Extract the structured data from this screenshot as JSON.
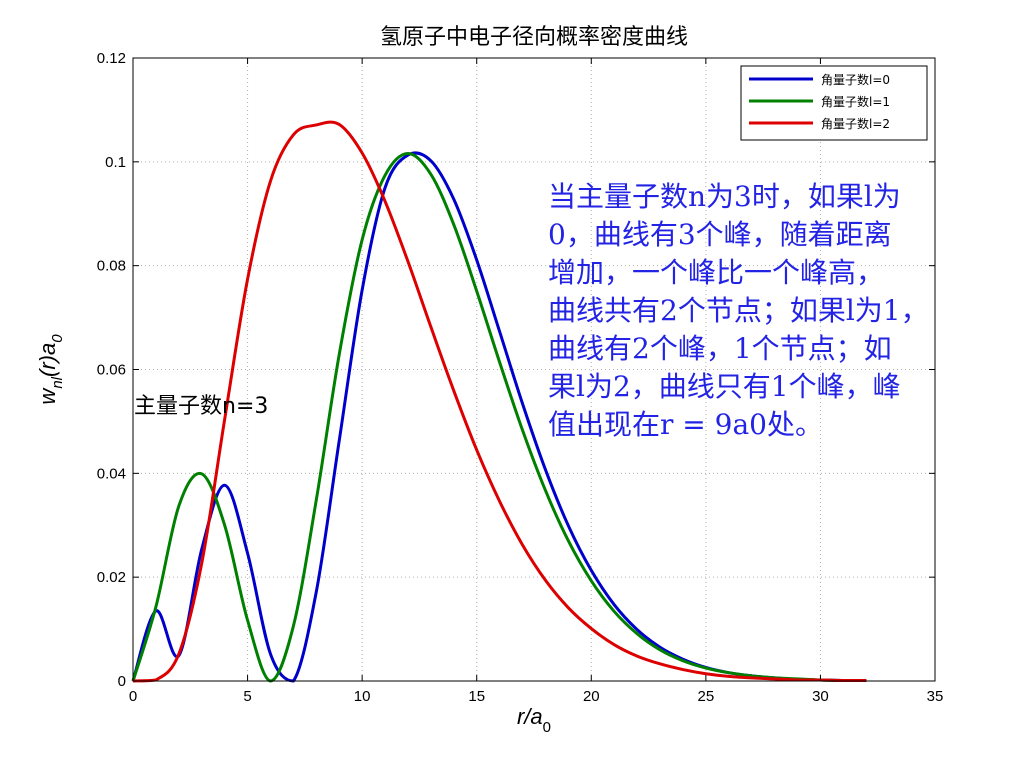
{
  "chart_data": {
    "type": "line",
    "title": "氢原子中电子径向概率密度曲线",
    "xlabel": "r/a0",
    "ylabel": "w_nl(r)a0",
    "xlim": [
      0,
      35
    ],
    "ylim": [
      0,
      0.12
    ],
    "x_ticks": [
      "0",
      "5",
      "10",
      "15",
      "20",
      "25",
      "30",
      "35"
    ],
    "y_ticks": [
      "0",
      "0.02",
      "0.04",
      "0.06",
      "0.08",
      "0.1",
      "0.12"
    ],
    "grid": true,
    "legend_position": "top-right",
    "x_step": 1,
    "series": [
      {
        "name": "角量子数l=0",
        "color": "#0000cc",
        "x": [
          0,
          1,
          2,
          3,
          4,
          5,
          6,
          7,
          8,
          9,
          10,
          11,
          12,
          13,
          14,
          15,
          16,
          17,
          18,
          19,
          20,
          21,
          22,
          23,
          24,
          25,
          26,
          27,
          28,
          29,
          30,
          31,
          32
        ],
        "values": [
          0,
          0.0135,
          0.0049,
          0.0254,
          0.0377,
          0.0246,
          0.0052,
          0,
          0.0172,
          0.0463,
          0.0753,
          0.095,
          0.1013,
          0.1002,
          0.0928,
          0.0811,
          0.0673,
          0.0534,
          0.0407,
          0.0299,
          0.0213,
          0.0147,
          0.0099,
          0.0065,
          0.0042,
          0.0026,
          0.0016,
          0.001,
          0.0006,
          0.0003,
          0.0002,
          0.0001,
          0.0001
        ]
      },
      {
        "name": "角量子数l=1",
        "color": "#008000",
        "x": [
          0,
          1,
          2,
          3,
          4,
          5,
          6,
          7,
          8,
          9,
          10,
          11,
          12,
          13,
          14,
          15,
          16,
          17,
          18,
          19,
          20,
          21,
          22,
          23,
          24,
          25,
          26,
          27,
          28,
          29,
          30,
          31,
          32
        ],
        "values": [
          0,
          0.0143,
          0.0337,
          0.0399,
          0.03,
          0.0117,
          0,
          0.0106,
          0.0349,
          0.0629,
          0.085,
          0.0974,
          0.1016,
          0.0976,
          0.0879,
          0.0751,
          0.0614,
          0.0483,
          0.0367,
          0.027,
          0.0193,
          0.0134,
          0.0091,
          0.006,
          0.0039,
          0.0025,
          0.0016,
          0.001,
          0.0006,
          0.0004,
          0.0002,
          0.0001,
          0.0001
        ]
      },
      {
        "name": "角量子数l=2",
        "color": "#dd0000",
        "x": [
          0,
          1,
          2,
          3,
          4,
          5,
          6,
          7,
          8,
          9,
          10,
          11,
          12,
          13,
          14,
          15,
          16,
          17,
          18,
          19,
          20,
          21,
          22,
          23,
          24,
          25,
          26,
          27,
          28,
          29,
          30,
          31,
          32
        ],
        "values": [
          0,
          0.0002,
          0.0052,
          0.0227,
          0.0504,
          0.0774,
          0.0963,
          0.1052,
          0.1071,
          0.1072,
          0.1017,
          0.0924,
          0.0808,
          0.0682,
          0.0559,
          0.0445,
          0.0346,
          0.0262,
          0.0194,
          0.0141,
          0.0101,
          0.007,
          0.0048,
          0.0033,
          0.0022,
          0.0014,
          0.0009,
          0.0006,
          0.0004,
          0.0002,
          0.0002,
          0.0001,
          0.0001
        ]
      }
    ]
  },
  "annotation_lines": [
    "当主量子数n为3时，如果l为",
    "0，曲线有3个峰，随着距离",
    "增加，一个峰比一个峰高，",
    "曲线共有2个节点；如果l为1，",
    "曲线有2个峰，1个节点；如",
    "果l为2，曲线只有1个峰，峰",
    "值出现在r = 9a0处。"
  ],
  "n_label": "主量子数n=3",
  "colors": {
    "annotation": "#2323e6",
    "axis": "#000000",
    "grid": "#b0b0b0"
  }
}
